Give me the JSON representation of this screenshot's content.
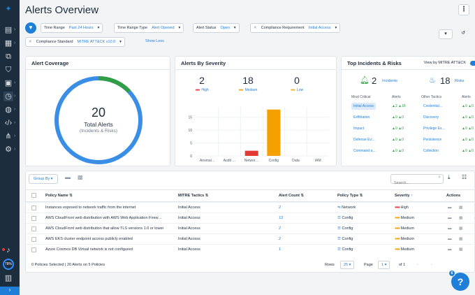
{
  "page": {
    "title": "Alerts Overview"
  },
  "filters": [
    {
      "key": "Time Range",
      "value": "Past 24 Hours",
      "removable": false
    },
    {
      "key": "Time Range Type",
      "value": "Alert Opened",
      "removable": false
    },
    {
      "key": "Alert Status",
      "value": "Open",
      "removable": false
    },
    {
      "key": "Compliance Requirement",
      "value": "Initial Access",
      "removable": true
    },
    {
      "key": "Compliance Standard",
      "value": "MITRE ATT&CK v10.0",
      "removable": true
    }
  ],
  "show_less": "Show Less",
  "coverage": {
    "title": "Alert Coverage",
    "count": "20",
    "label1": "Total Alerts",
    "label2": "(Incidents & Risks)",
    "green_fraction": 0.12
  },
  "severity": {
    "title": "Alerts By Severity",
    "levels": [
      {
        "count": "2",
        "label": "High",
        "color": "#e53935"
      },
      {
        "count": "18",
        "label": "Medium",
        "color": "#f59f00"
      },
      {
        "count": "0",
        "label": "Low",
        "color": "#fab005"
      }
    ]
  },
  "chart_data": {
    "type": "bar",
    "categories": [
      "Anomal…",
      "Audit …",
      "Networ…",
      "Config",
      "Data",
      "IAM"
    ],
    "series": [
      {
        "name": "High",
        "values": [
          0,
          0,
          2,
          0,
          0,
          0
        ],
        "color": "#e53935"
      },
      {
        "name": "Medium",
        "values": [
          0,
          0,
          0,
          18,
          0,
          0
        ],
        "color": "#f59f00"
      }
    ],
    "yticks": [
      "0",
      "5",
      "10",
      "15"
    ],
    "ylim": [
      0,
      19
    ]
  },
  "top": {
    "title": "Top Incidents & Risks",
    "toggle_label": "View by MITRE ATT&CK",
    "incidents_count": "2",
    "incidents_label": "Incidents",
    "risks_count": "18",
    "risks_label": "Risks",
    "h1": "Most Critical",
    "h2": "Alerts",
    "h3": "Other Tactics",
    "h4": "Alerts",
    "rows": [
      {
        "t1": "Initial Access",
        "a1": "▲2 ▲18",
        "t2": "Credential…",
        "a2": "▲0 ▲0"
      },
      {
        "t1": "Exfiltration",
        "a1": "▲0 ▲0",
        "t2": "Discovery",
        "a2": "▲0 ▲0"
      },
      {
        "t1": "Impact",
        "a1": "▲0 ▲0",
        "t2": "Privilege Es…",
        "a2": "▲0 ▲0"
      },
      {
        "t1": "Defense Ev…",
        "a1": "▲0 ▲0",
        "t2": "Persistence",
        "a2": "▲0 ▲0"
      },
      {
        "t1": "Command a…",
        "a1": "▲0 ▲0",
        "t2": "Collection",
        "a2": "▲0 ▲0"
      }
    ]
  },
  "table": {
    "group_by": "Group By",
    "search_placeholder": "Search...",
    "headers": [
      "Policy Name",
      "MITRE Tactics",
      "Alert Count",
      "Policy Type",
      "Severity",
      "Actions"
    ],
    "rows": [
      {
        "name": "Instances exposed to network traffic from the internet",
        "tactic": "Initial Access",
        "count": "2",
        "type": "Network",
        "sev": "High",
        "sevcolor": "#e53935"
      },
      {
        "name": "AWS CloudFront web distribution with AWS Web Application Firew…",
        "tactic": "Initial Access",
        "count": "13",
        "type": "Config",
        "sev": "Medium",
        "sevcolor": "#f59f00"
      },
      {
        "name": "AWS CloudFront web distribution that allow TLS versions 1.0 or lower",
        "tactic": "Initial Access",
        "count": "2",
        "type": "Config",
        "sev": "Medium",
        "sevcolor": "#f59f00"
      },
      {
        "name": "AWS EKS cluster endpoint access publicly enabled",
        "tactic": "Initial Access",
        "count": "2",
        "type": "Config",
        "sev": "Medium",
        "sevcolor": "#f59f00"
      },
      {
        "name": "Azure Cosmos DB Virtual network is not configured",
        "tactic": "Initial Access",
        "count": "1",
        "type": "Config",
        "sev": "Medium",
        "sevcolor": "#f59f00"
      }
    ],
    "footer": "0 Policies Selected | 20 Alerts on 5 Policies",
    "rows_label": "Rows",
    "rows_value": "25",
    "page_label": "Page",
    "page_value": "1",
    "page_of": "of 1"
  },
  "help": {
    "badge": "6",
    "glyph": "?"
  },
  "sidebar": {
    "progress": "78%"
  }
}
